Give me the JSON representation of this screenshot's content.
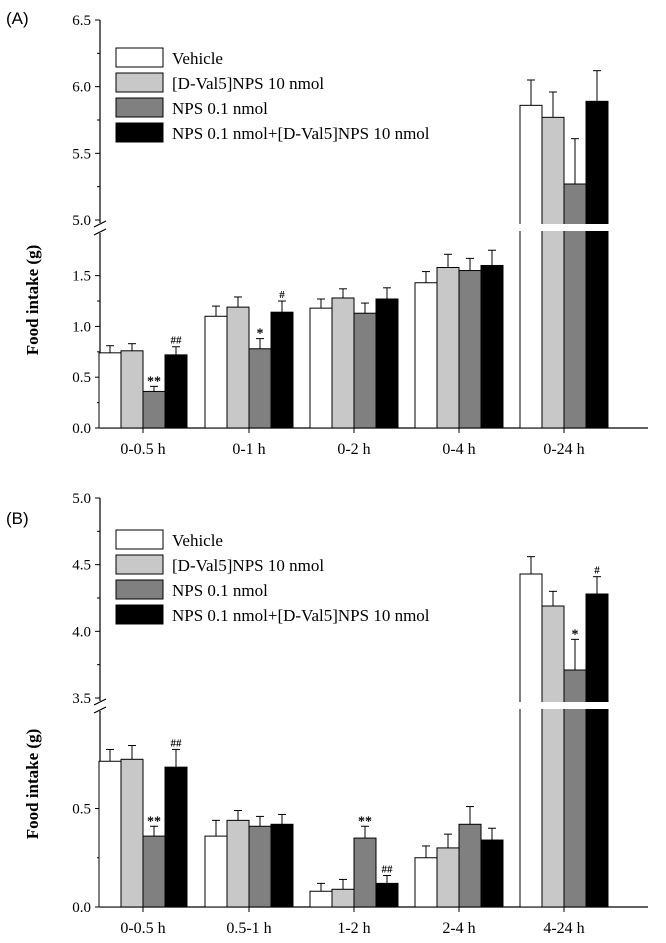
{
  "chart_data": [
    {
      "type": "bar",
      "panel_label": "(A)",
      "ylabel": "Food intake (g)",
      "axis_break": true,
      "lower_ylim": [
        0,
        1.9
      ],
      "upper_ylim": [
        5.0,
        6.5
      ],
      "lower_ticks": [
        "0.0",
        "0.5",
        "1.0",
        "1.5"
      ],
      "upper_ticks": [
        "5.0",
        "5.5",
        "6.0",
        "6.5"
      ],
      "categories": [
        "0-0.5 h",
        "0-1 h",
        "0-2 h",
        "0-4 h",
        "0-24 h"
      ],
      "legend_position": "top-left",
      "series": [
        {
          "name": "Vehicle",
          "color": "#ffffff",
          "values": [
            0.74,
            1.1,
            1.18,
            1.43,
            5.86
          ],
          "errors": [
            0.07,
            0.1,
            0.09,
            0.11,
            0.19
          ]
        },
        {
          "name": "[D-Val5]NPS 10 nmol",
          "color": "#c8c8c8",
          "values": [
            0.76,
            1.19,
            1.28,
            1.58,
            5.77
          ],
          "errors": [
            0.07,
            0.1,
            0.09,
            0.13,
            0.19
          ]
        },
        {
          "name": "NPS 0.1 nmol",
          "color": "#808080",
          "values": [
            0.36,
            0.78,
            1.13,
            1.55,
            5.27
          ],
          "errors": [
            0.05,
            0.1,
            0.1,
            0.12,
            0.34
          ]
        },
        {
          "name": "NPS 0.1 nmol+[D-Val5]NPS 10 nmol",
          "color": "#000000",
          "values": [
            0.72,
            1.14,
            1.27,
            1.6,
            5.89
          ],
          "errors": [
            0.08,
            0.11,
            0.11,
            0.15,
            0.23
          ]
        }
      ],
      "annotations": [
        {
          "category": 0,
          "series": 2,
          "text": "**"
        },
        {
          "category": 0,
          "series": 3,
          "text": "##"
        },
        {
          "category": 1,
          "series": 2,
          "text": "*"
        },
        {
          "category": 1,
          "series": 3,
          "text": "#"
        }
      ]
    },
    {
      "type": "bar",
      "panel_label": "(B)",
      "ylabel": "Food intake (g)",
      "axis_break": true,
      "lower_ylim": [
        0,
        0.98
      ],
      "upper_ylim": [
        3.5,
        5.0
      ],
      "lower_ticks": [
        "0.0",
        "0.5"
      ],
      "upper_ticks": [
        "3.5",
        "4.0",
        "4.5",
        "5.0"
      ],
      "categories": [
        "0-0.5 h",
        "0.5-1 h",
        "1-2 h",
        "2-4 h",
        "4-24 h"
      ],
      "legend_position": "top-left",
      "series": [
        {
          "name": "Vehicle",
          "color": "#ffffff",
          "values": [
            0.74,
            0.36,
            0.08,
            0.25,
            4.43
          ],
          "errors": [
            0.06,
            0.08,
            0.04,
            0.06,
            0.13
          ]
        },
        {
          "name": "[D-Val5]NPS 10 nmol",
          "color": "#c8c8c8",
          "values": [
            0.75,
            0.44,
            0.09,
            0.3,
            4.19
          ],
          "errors": [
            0.07,
            0.05,
            0.05,
            0.07,
            0.11
          ]
        },
        {
          "name": "NPS 0.1 nmol",
          "color": "#808080",
          "values": [
            0.36,
            0.41,
            0.35,
            0.42,
            3.71
          ],
          "errors": [
            0.05,
            0.05,
            0.06,
            0.09,
            0.23
          ]
        },
        {
          "name": "NPS 0.1 nmol+[D-Val5]NPS 10 nmol",
          "color": "#000000",
          "values": [
            0.71,
            0.42,
            0.12,
            0.34,
            4.28
          ],
          "errors": [
            0.09,
            0.05,
            0.04,
            0.06,
            0.13
          ]
        }
      ],
      "annotations": [
        {
          "category": 0,
          "series": 2,
          "text": "**"
        },
        {
          "category": 0,
          "series": 3,
          "text": "##"
        },
        {
          "category": 2,
          "series": 2,
          "text": "**"
        },
        {
          "category": 2,
          "series": 3,
          "text": "##"
        },
        {
          "category": 4,
          "series": 2,
          "text": "*"
        },
        {
          "category": 4,
          "series": 3,
          "text": "#"
        }
      ]
    }
  ]
}
